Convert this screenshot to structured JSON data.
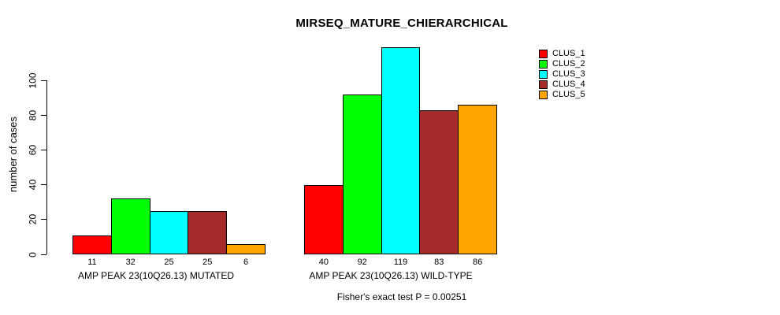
{
  "title": "MIRSEQ_MATURE_CHIERARCHICAL",
  "caption": "Fisher's exact test P = 0.00251",
  "chart_data": {
    "type": "bar",
    "title": "MIRSEQ_MATURE_CHIERARCHICAL",
    "xlabel": "",
    "ylabel": "number of cases",
    "ylim": [
      0,
      120
    ],
    "yticks": [
      0,
      20,
      40,
      60,
      80,
      100
    ],
    "grid": false,
    "legend_position": "top-right",
    "categories": [
      "AMP PEAK 23(10Q26.13) MUTATED",
      "AMP PEAK 23(10Q26.13) WILD-TYPE"
    ],
    "groups": [
      {
        "label": "AMP PEAK 23(10Q26.13) MUTATED",
        "values": [
          11,
          32,
          25,
          25,
          6
        ]
      },
      {
        "label": "AMP PEAK 23(10Q26.13) WILD-TYPE",
        "values": [
          40,
          92,
          119,
          83,
          86
        ]
      }
    ],
    "series": [
      {
        "name": "CLUS_1",
        "color": "#FF0000",
        "values": [
          11,
          40
        ]
      },
      {
        "name": "CLUS_2",
        "color": "#00FF00",
        "values": [
          32,
          92
        ]
      },
      {
        "name": "CLUS_3",
        "color": "#00FFFF",
        "values": [
          25,
          119
        ]
      },
      {
        "name": "CLUS_4",
        "color": "#A52A2A",
        "values": [
          25,
          83
        ]
      },
      {
        "name": "CLUS_5",
        "color": "#FFA500",
        "values": [
          6,
          86
        ]
      }
    ],
    "annotation": "Fisher's exact test P = 0.00251"
  }
}
